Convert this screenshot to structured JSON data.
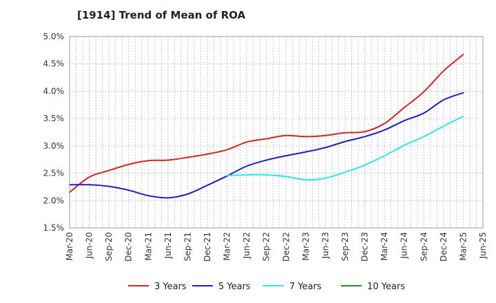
{
  "chart_data": {
    "type": "line",
    "title": "[1914]  Trend of Mean of ROA",
    "xlabel": "",
    "ylabel": "",
    "ylim": [
      1.5,
      5.0
    ],
    "y_ticks": [
      "1.5%",
      "2.0%",
      "2.5%",
      "3.0%",
      "3.5%",
      "4.0%",
      "4.5%",
      "5.0%"
    ],
    "y_tick_values": [
      1.5,
      2.0,
      2.5,
      3.0,
      3.5,
      4.0,
      4.5,
      5.0
    ],
    "x_ticks": [
      "Mar-20",
      "Jun-20",
      "Sep-20",
      "Dec-20",
      "Mar-21",
      "Jun-21",
      "Sep-21",
      "Dec-21",
      "Mar-22",
      "Jun-22",
      "Sep-22",
      "Dec-22",
      "Mar-23",
      "Jun-23",
      "Sep-23",
      "Dec-23",
      "Mar-24",
      "Jun-24",
      "Sep-24",
      "Dec-24",
      "Mar-25",
      "Jun-25"
    ],
    "grid": true,
    "legend_position": "bottom",
    "series": [
      {
        "name": "3 Years",
        "color": "#dd1f1f",
        "x": [
          "Mar-20",
          "Jun-20",
          "Sep-20",
          "Dec-20",
          "Mar-21",
          "Jun-21",
          "Sep-21",
          "Dec-21",
          "Mar-22",
          "Jun-22",
          "Sep-22",
          "Dec-22",
          "Mar-23",
          "Jun-23",
          "Sep-23",
          "Dec-23",
          "Mar-24",
          "Jun-24",
          "Sep-24",
          "Dec-24",
          "Mar-25"
        ],
        "values": [
          2.15,
          2.43,
          2.55,
          2.66,
          2.73,
          2.74,
          2.79,
          2.85,
          2.93,
          3.07,
          3.13,
          3.19,
          3.17,
          3.19,
          3.24,
          3.26,
          3.41,
          3.7,
          3.99,
          4.37,
          4.67
        ]
      },
      {
        "name": "5 Years",
        "color": "#1c1ccd",
        "x": [
          "Mar-20",
          "Jun-20",
          "Sep-20",
          "Dec-20",
          "Mar-21",
          "Jun-21",
          "Sep-21",
          "Dec-21",
          "Mar-22",
          "Jun-22",
          "Sep-22",
          "Dec-22",
          "Mar-23",
          "Jun-23",
          "Sep-23",
          "Dec-23",
          "Mar-24",
          "Jun-24",
          "Sep-24",
          "Dec-24",
          "Mar-25"
        ],
        "values": [
          2.29,
          2.29,
          2.26,
          2.19,
          2.09,
          2.05,
          2.12,
          2.28,
          2.45,
          2.63,
          2.74,
          2.82,
          2.89,
          2.97,
          3.08,
          3.17,
          3.29,
          3.46,
          3.6,
          3.84,
          3.97
        ]
      },
      {
        "name": "7 Years",
        "color": "#27e8e8",
        "x": [
          "Mar-22",
          "Jun-22",
          "Sep-22",
          "Dec-22",
          "Mar-23",
          "Jun-23",
          "Sep-23",
          "Dec-23",
          "Mar-24",
          "Jun-24",
          "Sep-24",
          "Dec-24",
          "Mar-25"
        ],
        "values": [
          2.46,
          2.47,
          2.47,
          2.44,
          2.38,
          2.41,
          2.52,
          2.65,
          2.82,
          3.01,
          3.17,
          3.36,
          3.54
        ]
      },
      {
        "name": "10 Years",
        "color": "#1e8c1e",
        "x": [],
        "values": []
      }
    ]
  }
}
